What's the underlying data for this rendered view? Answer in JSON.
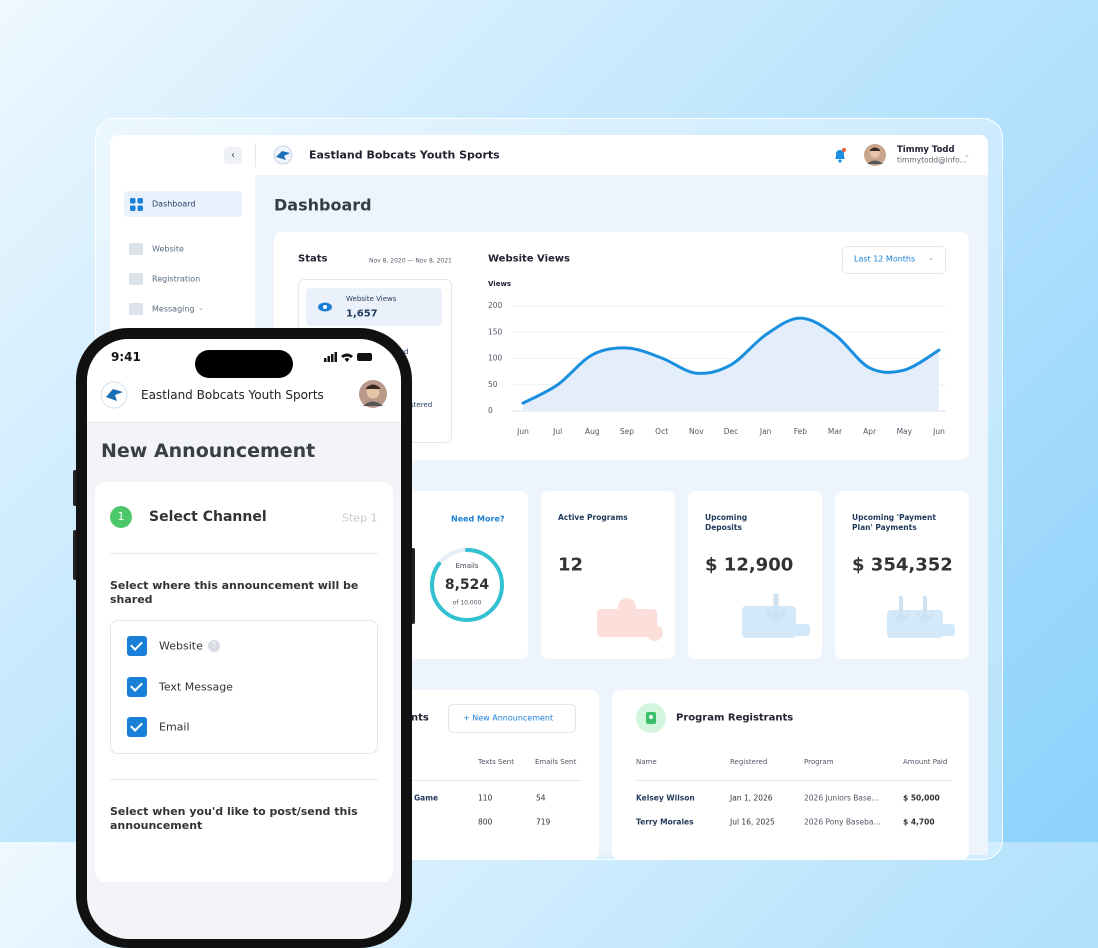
{
  "header": {
    "org_name": "Eastland Bobcats Youth Sports",
    "user_name": "Timmy Todd",
    "user_email": "timmytodd@info..."
  },
  "sidebar": {
    "items": [
      "Dashboard",
      "Website",
      "Registration",
      "Messaging"
    ]
  },
  "page_title": "Dashboard",
  "stats": {
    "title": "Stats",
    "date_range": "Nov 8, 2020 — Nov 8, 2021",
    "selected": {
      "label": "Website Views",
      "value": "1,657"
    },
    "partial_labels": [
      "red",
      "stered"
    ]
  },
  "chart_data": {
    "type": "line",
    "title": "Website Views",
    "range_selector": "Last 12 Months",
    "ylabel": "Views",
    "categories": [
      "Jun",
      "Jul",
      "Aug",
      "Sep",
      "Oct",
      "Nov",
      "Dec",
      "Jan",
      "Feb",
      "Mar",
      "Apr",
      "May",
      "Jun"
    ],
    "values": [
      15,
      50,
      107,
      120,
      101,
      72,
      88,
      145,
      177,
      145,
      82,
      78,
      116
    ],
    "color": "#1a8fe0",
    "area_color": "#e4eefb",
    "ylim": [
      0,
      200
    ],
    "yticks": [
      0,
      50,
      100,
      150,
      200
    ],
    "grid": true
  },
  "cards": [
    {
      "link": "Need More?",
      "ring": {
        "label": "Emails",
        "value": 8524,
        "value_label": "8,524",
        "max": 10000,
        "max_label": "of 10,000",
        "color": "#33c1d1"
      }
    },
    {
      "title": "Active Programs",
      "value": "12"
    },
    {
      "title": "Upcoming Deposits",
      "value": "$ 12,900"
    },
    {
      "title": "Upcoming 'Payment Plan' Payments",
      "value": "$ 354,352"
    }
  ],
  "announcements": {
    "title_fragment": "nts",
    "button": "+ New Announcement",
    "columns": [
      "Texts Sent",
      "Emails Sent"
    ],
    "rows": [
      {
        "name": "Game",
        "texts": 110,
        "emails": 54
      },
      {
        "texts": 800,
        "emails": 719
      }
    ]
  },
  "registrants": {
    "title": "Program Registrants",
    "columns": [
      "Name",
      "Registered",
      "Program",
      "Amount Paid"
    ],
    "rows": [
      [
        "Kelsey Wilson",
        "Jan 1, 2026",
        "2026 Juniors Base...",
        "$ 50,000"
      ],
      [
        "Terry Morales",
        "Jul 16, 2025",
        "2026 Pony Baseba...",
        "$ 4,700"
      ]
    ]
  },
  "phone": {
    "time": "9:41",
    "org_name": "Eastland Bobcats Youth Sports",
    "title": "New Announcement",
    "step_number": 1,
    "step_title": "Select Channel",
    "step_label": "Step 1",
    "channel_prompt": "Select where this announcement will be shared",
    "channels": [
      "Website",
      "Text Message",
      "Email"
    ],
    "schedule_prompt": "Select when you'd like to post/send this announcement"
  }
}
